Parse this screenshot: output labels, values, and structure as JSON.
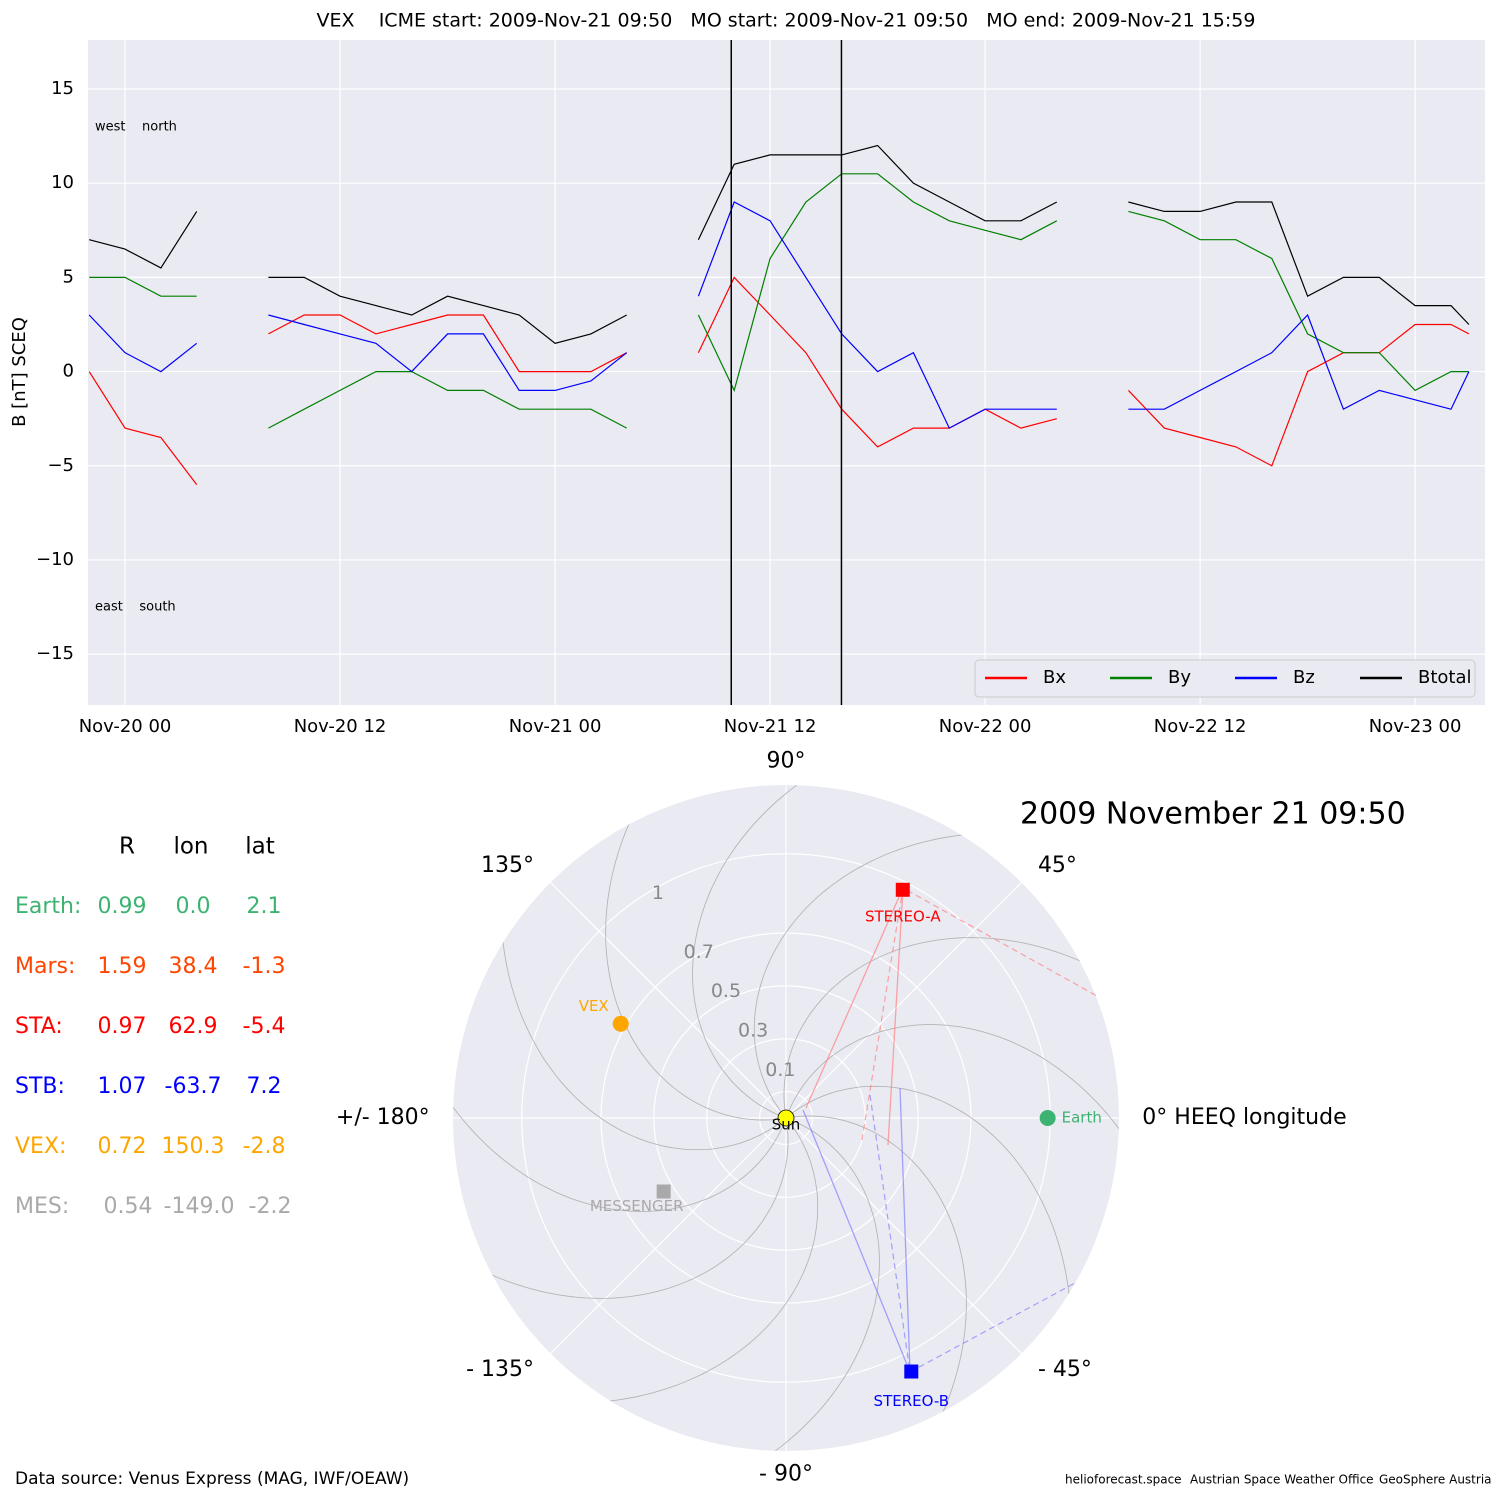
{
  "chart_data": [
    {
      "type": "line",
      "title": "VEX    ICME start: 2009-Nov-21 09:50   MO start: 2009-Nov-21 09:50   MO end: 2009-Nov-21 15:59",
      "y_label": "B [nT] SCEQ",
      "annotations": [
        "west    north",
        "east    south"
      ],
      "x": [
        "Nov-19 22",
        "Nov-20 00",
        "Nov-20 02",
        "Nov-20 04",
        "Nov-20 06",
        "Nov-20 08",
        "Nov-20 10",
        "Nov-20 12",
        "Nov-20 14",
        "Nov-20 16",
        "Nov-20 18",
        "Nov-20 20",
        "Nov-20 22",
        "Nov-21 00",
        "Nov-21 02",
        "Nov-21 04",
        "Nov-21 06",
        "Nov-21 08",
        "Nov-21 10",
        "Nov-21 12",
        "Nov-21 14",
        "Nov-21 16",
        "Nov-21 18",
        "Nov-21 20",
        "Nov-21 22",
        "Nov-22 00",
        "Nov-22 02",
        "Nov-22 04",
        "Nov-22 06",
        "Nov-22 08",
        "Nov-22 10",
        "Nov-22 12",
        "Nov-22 14",
        "Nov-22 16",
        "Nov-22 18",
        "Nov-22 20",
        "Nov-22 22",
        "Nov-23 00",
        "Nov-23 02",
        "Nov-23 03"
      ],
      "series": [
        {
          "name": "Bx",
          "color": "#ff0000",
          "values": [
            0,
            -3,
            -3.5,
            -6,
            null,
            2,
            3,
            3,
            2,
            2.5,
            3,
            3,
            0,
            0,
            0,
            1,
            null,
            1,
            5,
            3,
            1,
            -2,
            -4,
            -3,
            -3,
            -2,
            -3,
            -2.5,
            null,
            -1,
            -3,
            -3.5,
            -4,
            -5,
            0,
            1,
            1,
            2.5,
            2.5,
            2
          ]
        },
        {
          "name": "By",
          "color": "#008000",
          "values": [
            5,
            5,
            4,
            4,
            null,
            -3,
            -2,
            -1,
            0,
            0,
            -1,
            -1,
            -2,
            -2,
            -2,
            -3,
            null,
            3,
            -1,
            6,
            9,
            10.5,
            10.5,
            9,
            8,
            7.5,
            7,
            8,
            null,
            8.5,
            8,
            7,
            7,
            6,
            2,
            1,
            1,
            -1,
            0,
            0
          ]
        },
        {
          "name": "Bz",
          "color": "#0000ff",
          "values": [
            3,
            1,
            0,
            1.5,
            null,
            3,
            2.5,
            2,
            1.5,
            0,
            2,
            2,
            -1,
            -1,
            -0.5,
            1,
            null,
            4,
            9,
            8,
            5,
            2,
            0,
            1,
            -3,
            -2,
            -2,
            -2,
            null,
            -2,
            -2,
            -1,
            0,
            1,
            3,
            -2,
            -1,
            -1.5,
            -2,
            0
          ]
        },
        {
          "name": "Btotal",
          "color": "#000000",
          "values": [
            7,
            6.5,
            5.5,
            8.5,
            null,
            5,
            5,
            4,
            3.5,
            3,
            4,
            3.5,
            3,
            1.5,
            2,
            3,
            null,
            7,
            11,
            11.5,
            11.5,
            11.5,
            12,
            10,
            9,
            8,
            8,
            9,
            null,
            9,
            8.5,
            8.5,
            9,
            9,
            4,
            5,
            5,
            3.5,
            3.5,
            2.5
          ]
        }
      ],
      "vlines": [
        "Nov-21 09:50",
        "Nov-21 15:59"
      ],
      "xlim": [
        "Nov-19 21:56",
        "Nov-23 03:54"
      ],
      "xticks": [
        "Nov-20 00",
        "Nov-20 12",
        "Nov-21 00",
        "Nov-21 12",
        "Nov-22 00",
        "Nov-22 12",
        "Nov-23 00"
      ],
      "ylim": [
        -17.7,
        17.6
      ],
      "yticks": [
        {
          "value": -15,
          "label": "−15"
        },
        {
          "value": -10,
          "label": "−10"
        },
        {
          "value": -5,
          "label": "−5"
        },
        0,
        5,
        10,
        15
      ],
      "grid": true,
      "legend": "lower right"
    },
    {
      "type": "polar",
      "title": "2009 November 21  09:50",
      "rlim": [
        0,
        1.26
      ],
      "rticks": [
        0.1,
        0.3,
        0.5,
        0.7,
        1.0
      ],
      "thetaticks": [
        {
          "value": 0,
          "label": "0° HEEQ longitude"
        },
        {
          "value": 45,
          "label": "45°"
        },
        {
          "value": 90,
          "label": "90°"
        },
        {
          "value": 135,
          "label": "135°"
        },
        {
          "value": 180,
          "label": "+/- 180°"
        },
        {
          "value": -135,
          "label": "- 135°"
        },
        {
          "value": -90,
          "label": "- 90°"
        },
        {
          "value": -45,
          "label": "- 45°"
        }
      ],
      "center_label": "Sun",
      "points": [
        {
          "name": "Earth",
          "r": 0.99,
          "lon": 0.0,
          "color": "#3cb371",
          "marker": "circle"
        },
        {
          "name": "STEREO-A",
          "r": 0.97,
          "lon": 62.9,
          "color": "#ff0000",
          "marker": "square"
        },
        {
          "name": "STEREO-B",
          "r": 1.07,
          "lon": -63.7,
          "color": "#0000ff",
          "marker": "square"
        },
        {
          "name": "VEX",
          "r": 0.72,
          "lon": 150.3,
          "color": "#ffa500",
          "marker": "circle"
        },
        {
          "name": "MESSENGER",
          "r": 0.54,
          "lon": -149.0,
          "color": "#a9a9a9",
          "marker": "square"
        }
      ]
    }
  ],
  "table": {
    "header": [
      "R",
      "lon",
      "lat"
    ],
    "rows": [
      {
        "name": "Earth:",
        "color": "#3cb371",
        "cells": [
          "0.99",
          "0.0",
          "2.1"
        ]
      },
      {
        "name": "Mars:",
        "color": "#ff4500",
        "cells": [
          "1.59",
          "38.4",
          "-1.3"
        ]
      },
      {
        "name": "STA:",
        "color": "#ff0000",
        "cells": [
          "0.97",
          "62.9",
          "-5.4"
        ]
      },
      {
        "name": "STB:",
        "color": "#0000ff",
        "cells": [
          "1.07",
          "-63.7",
          "7.2"
        ]
      },
      {
        "name": "VEX:",
        "color": "#ffa500",
        "cells": [
          "0.72",
          "150.3",
          "-2.8"
        ]
      },
      {
        "name": "MES:",
        "color": "#a9a9a9",
        "cells": [
          "0.54",
          "-149.0",
          "-2.2"
        ]
      }
    ]
  },
  "footer": {
    "source": "Data source: Venus Express (MAG, IWF/OEAW)",
    "credits": [
      "helioforecast.space",
      "Austrian Space Weather Office",
      "GeoSphere Austria"
    ]
  }
}
